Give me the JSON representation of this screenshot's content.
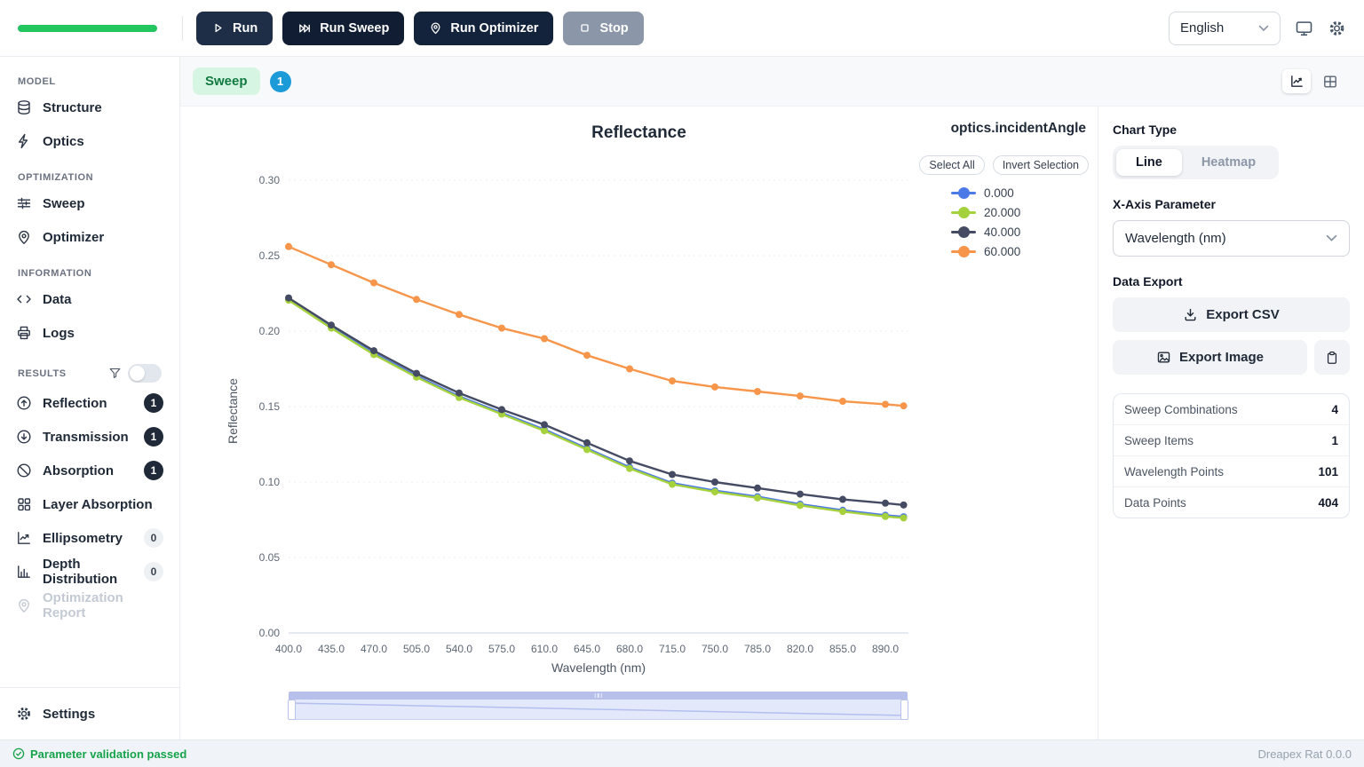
{
  "header": {
    "progress_color": "#22c55e",
    "run": "Run",
    "run_sweep": "Run Sweep",
    "run_optimizer": "Run Optimizer",
    "stop": "Stop",
    "language": "English"
  },
  "sidebar": {
    "sections": [
      {
        "title": "MODEL",
        "items": [
          {
            "label": "Structure"
          },
          {
            "label": "Optics"
          }
        ]
      },
      {
        "title": "OPTIMIZATION",
        "items": [
          {
            "label": "Sweep"
          },
          {
            "label": "Optimizer"
          }
        ]
      },
      {
        "title": "INFORMATION",
        "items": [
          {
            "label": "Data"
          },
          {
            "label": "Logs"
          }
        ]
      },
      {
        "title": "RESULTS",
        "items": [
          {
            "label": "Reflection",
            "badge": "1"
          },
          {
            "label": "Transmission",
            "badge": "1"
          },
          {
            "label": "Absorption",
            "badge": "1"
          },
          {
            "label": "Layer Absorption"
          },
          {
            "label": "Ellipsometry",
            "badge": "0"
          },
          {
            "label": "Depth Distribution",
            "badge": "0"
          },
          {
            "label": "Optimization Report"
          }
        ]
      }
    ],
    "settings": "Settings"
  },
  "tabbar": {
    "sweep_label": "Sweep",
    "sweep_count": "1"
  },
  "legend": {
    "select_all": "Select All",
    "invert_selection": "Invert Selection"
  },
  "chart_data": {
    "type": "line",
    "title": "Reflectance",
    "xlabel": "Wavelength (nm)",
    "ylabel": "Reflectance",
    "legend_title": "optics.incidentAngle",
    "grid": true,
    "legend_position": "right",
    "x": [
      400,
      435,
      470,
      505,
      540,
      575,
      610,
      645,
      680,
      715,
      750,
      785,
      820,
      855,
      890,
      905
    ],
    "xtick_max": 890,
    "ylim": [
      0,
      0.3
    ],
    "yticks": [
      0,
      0.05,
      0.1,
      0.15,
      0.2,
      0.25,
      0.3
    ],
    "series": [
      {
        "name": "0.000",
        "color": "#4b79e6",
        "values": [
          0.2213,
          0.2028,
          0.1853,
          0.1703,
          0.1568,
          0.1458,
          0.1348,
          0.1223,
          0.1098,
          0.0993,
          0.0943,
          0.0903,
          0.0853,
          0.0813,
          0.078,
          0.077
        ]
      },
      {
        "name": "20.000",
        "color": "#a5d23c",
        "values": [
          0.2205,
          0.202,
          0.1845,
          0.1695,
          0.156,
          0.145,
          0.134,
          0.1215,
          0.109,
          0.0985,
          0.0935,
          0.0895,
          0.0845,
          0.0805,
          0.0772,
          0.0762
        ]
      },
      {
        "name": "40.000",
        "color": "#454b63",
        "values": [
          0.222,
          0.204,
          0.187,
          0.172,
          0.159,
          0.148,
          0.138,
          0.126,
          0.114,
          0.105,
          0.1,
          0.096,
          0.092,
          0.0885,
          0.086,
          0.0848
        ]
      },
      {
        "name": "60.000",
        "color": "#f7964a",
        "values": [
          0.256,
          0.244,
          0.232,
          0.221,
          0.211,
          0.202,
          0.195,
          0.184,
          0.175,
          0.167,
          0.163,
          0.16,
          0.157,
          0.1535,
          0.1515,
          0.1505
        ]
      }
    ]
  },
  "panel": {
    "chart_type_label": "Chart Type",
    "chart_type_line": "Line",
    "chart_type_heatmap": "Heatmap",
    "xaxis_label": "X-Axis Parameter",
    "xaxis_value": "Wavelength (nm)",
    "data_export_label": "Data Export",
    "export_csv": "Export CSV",
    "export_image": "Export Image",
    "stats": [
      {
        "label": "Sweep Combinations",
        "value": "4"
      },
      {
        "label": "Sweep Items",
        "value": "1"
      },
      {
        "label": "Wavelength Points",
        "value": "101"
      },
      {
        "label": "Data Points",
        "value": "404"
      }
    ]
  },
  "statusbar": {
    "message": "Parameter validation passed",
    "version": "Dreapex Rat 0.0.0"
  }
}
